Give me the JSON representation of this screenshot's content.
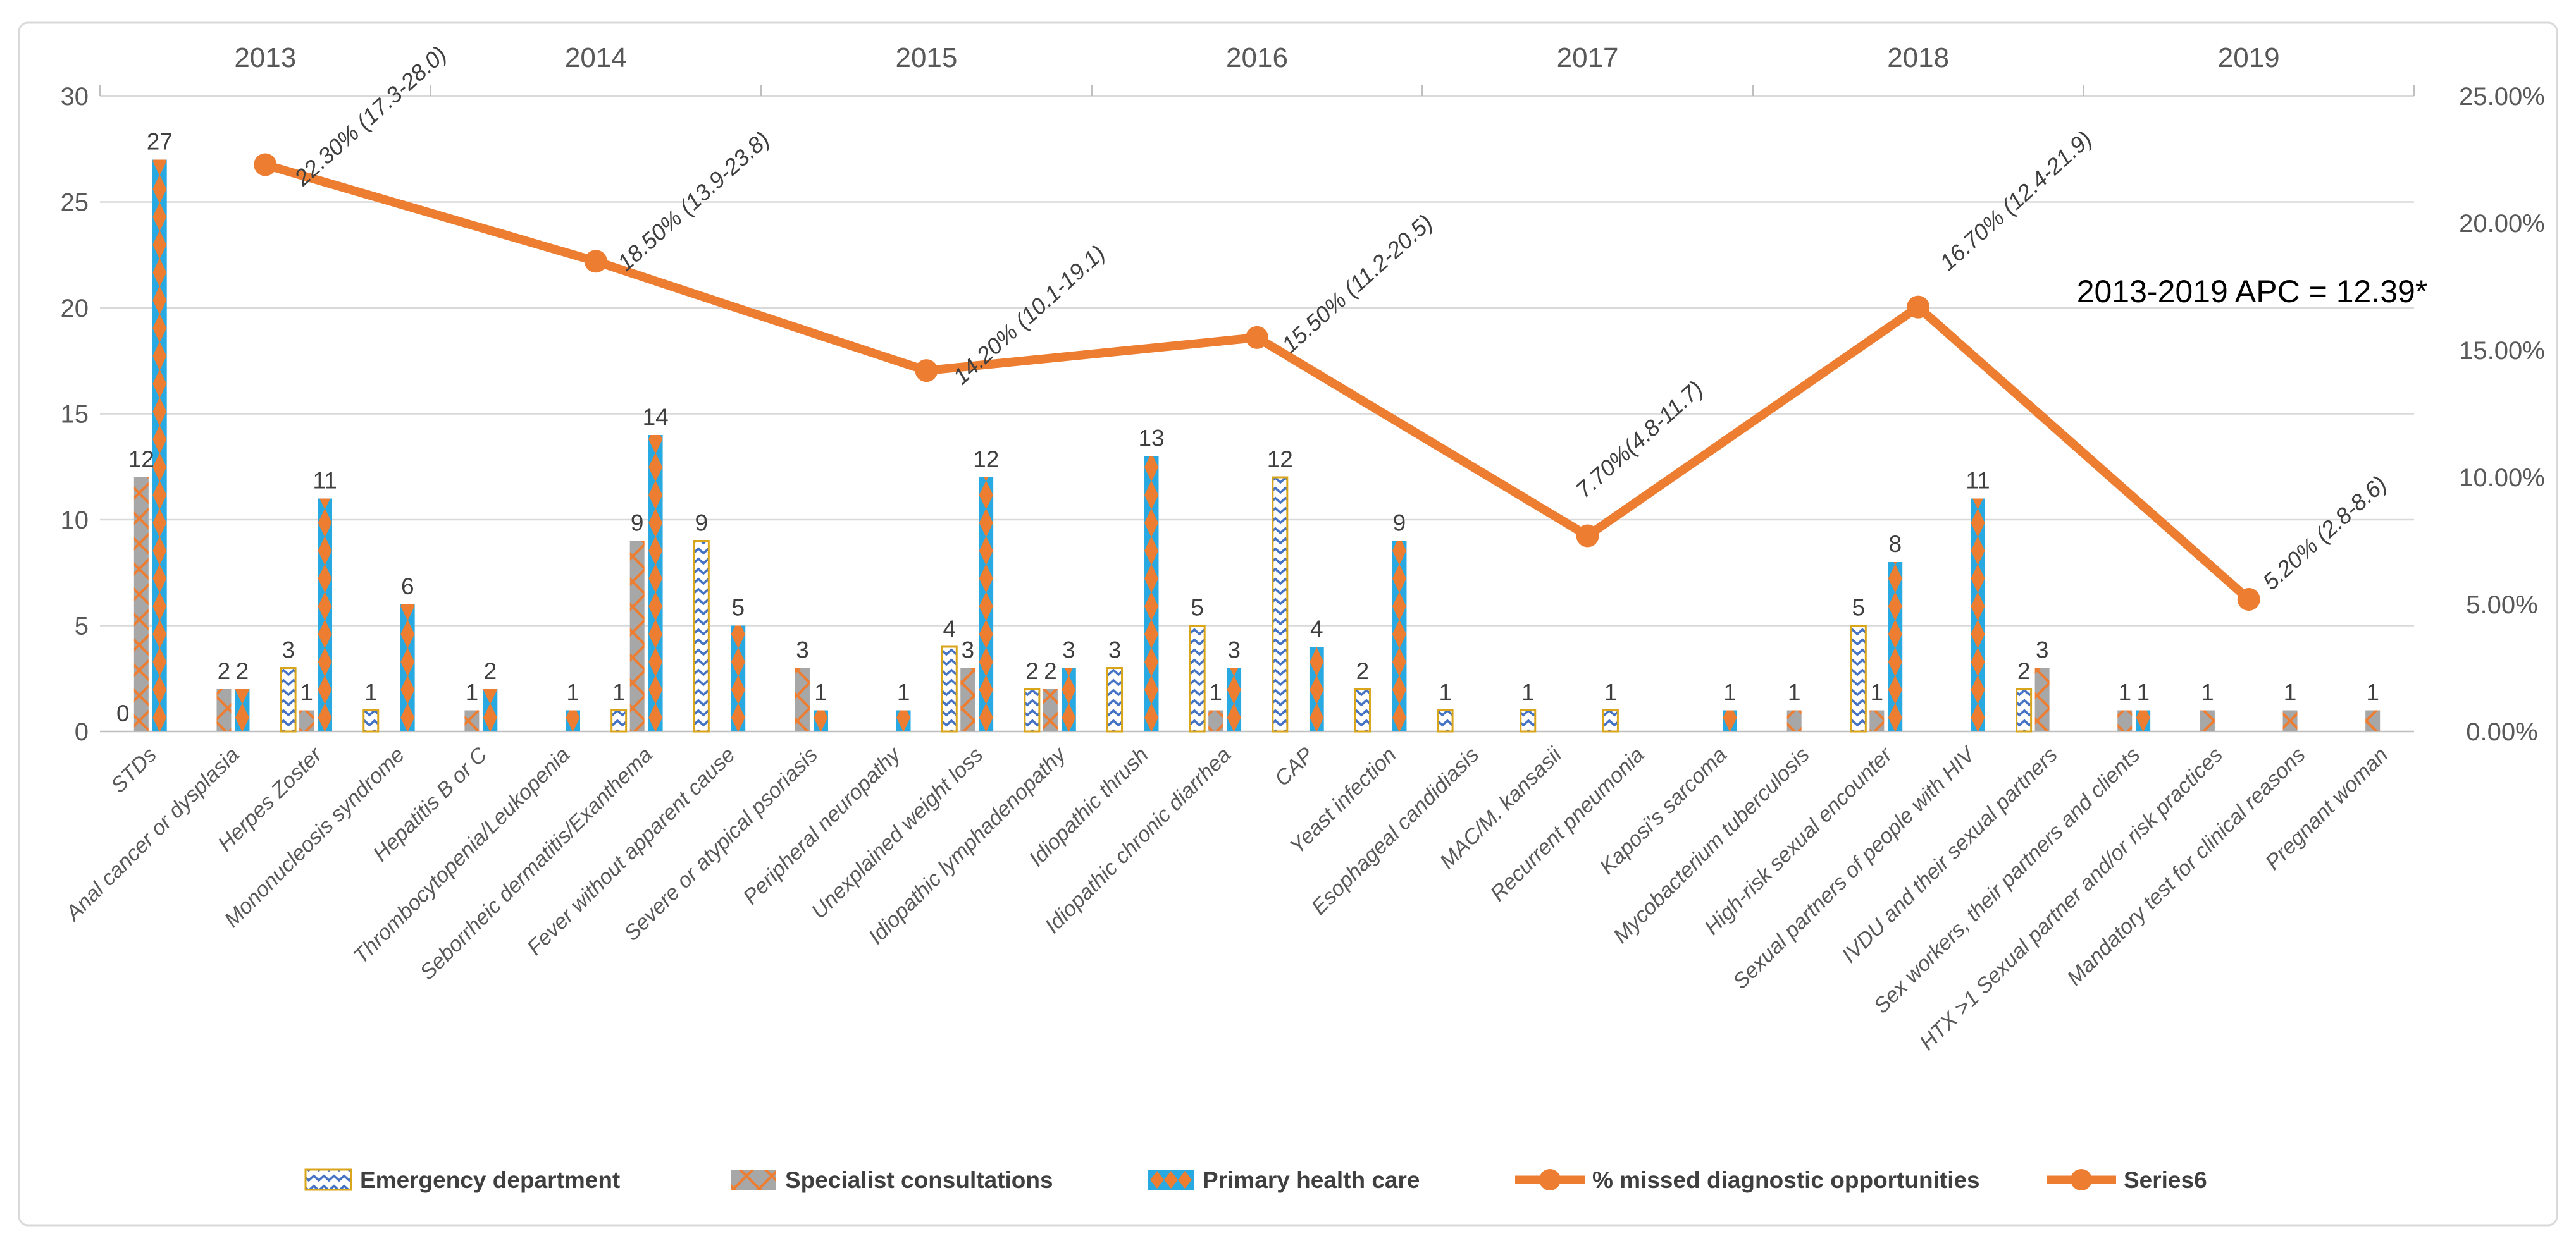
{
  "chart_data": {
    "type": "bar+line-combo",
    "categories": [
      "STDs",
      "Anal cancer or dysplasia",
      "Herpes Zoster",
      "Mononucleosis syndrome",
      "Hepatitis B or C",
      "Thrombocytopenia/Leukopenia",
      "Seborrheic dermatitis/Exanthema",
      "Fever without apparent cause",
      "Severe or atypical psoriasis",
      "Peripheral neuropathy",
      "Unexplained weight loss",
      "Idiopathic lymphadenopathy",
      "Idiopathic thrush",
      "Idiopathic chronic diarrhea",
      "CAP",
      "Yeast infection",
      "Esophageal candidiasis",
      "MAC/M. kansasii",
      "Recurrent pneumonia",
      "Kaposi's sarcoma",
      "Mycobacterium tuberculosis",
      "High-risk sexual encounter",
      "Sexual partners of people with HIV",
      "IVDU and their sexual partners",
      "Sex workers, their partners and clients",
      "HTX >1 Sexual partner and/or risk practices",
      "Mandatory test for clinical reasons",
      "Pregnant woman"
    ],
    "series": [
      {
        "name": "Emergency department",
        "type": "bar",
        "values": [
          0,
          null,
          3,
          1,
          null,
          null,
          1,
          9,
          null,
          null,
          4,
          2,
          3,
          5,
          12,
          2,
          1,
          1,
          1,
          null,
          null,
          5,
          null,
          2,
          null,
          null,
          null,
          null
        ]
      },
      {
        "name": "Specialist consultations",
        "type": "bar",
        "values": [
          12,
          2,
          1,
          null,
          1,
          null,
          9,
          null,
          3,
          null,
          3,
          2,
          null,
          1,
          null,
          null,
          null,
          null,
          null,
          null,
          1,
          1,
          null,
          3,
          1,
          1,
          1,
          1
        ]
      },
      {
        "name": "Primary health care",
        "type": "bar",
        "values": [
          27,
          2,
          11,
          6,
          2,
          1,
          14,
          5,
          1,
          1,
          12,
          3,
          13,
          3,
          4,
          9,
          null,
          null,
          null,
          1,
          null,
          8,
          11,
          null,
          1,
          null,
          null,
          null
        ]
      },
      {
        "name": "% missed diagnostic opportunities",
        "type": "line",
        "years": [
          "2013",
          "2014",
          "2015",
          "2016",
          "2017",
          "2018",
          "2019"
        ],
        "values_pct": [
          22.3,
          18.5,
          14.2,
          15.5,
          7.7,
          16.7,
          5.2
        ],
        "point_labels": [
          "22.30% (17.3-28.0)",
          "18.50% (13.9-23.8)",
          "14.20% (10.1-19.1)",
          "15.50% (11.2-20.5)",
          "7.70%(4.8-11.7)",
          "16.70% (12.4-21.9)",
          "5.20% (2.8-8.6)"
        ]
      },
      {
        "name": "Series6",
        "type": "line",
        "values_pct": []
      }
    ],
    "year_axis_labels": [
      "2013",
      "2014",
      "2015",
      "2016",
      "2017",
      "2018",
      "2019"
    ],
    "left_axis": {
      "ticks": [
        "0",
        "5",
        "10",
        "15",
        "20",
        "25",
        "30"
      ],
      "min": 0,
      "max": 30
    },
    "right_axis": {
      "ticks": [
        "0.00%",
        "5.00%",
        "10.00%",
        "15.00%",
        "20.00%",
        "25.00%"
      ],
      "min": 0,
      "max": 25
    },
    "annotation": "2013-2019 APC = 12.39*",
    "legend": [
      "Emergency department",
      "Specialist consultations",
      "Primary health care",
      "% missed diagnostic opportunities",
      "Series6"
    ],
    "grid": "horizontal-on",
    "legend_position": "bottom"
  },
  "colors": {
    "orange_accent": "#ED7D31",
    "phc_blue": "#29A9E1",
    "sc_gray": "#A7A7A7",
    "ed_gold_border": "#D9A61B",
    "ed_pattern_blue": "#4472C4",
    "gridline": "#D9D9D9",
    "axis_tick": "#BFBFBF",
    "axis_text": "#595959",
    "data_label_text": "#3F3F3F",
    "annotation_text": "#000000",
    "frame_border": "#D9D9D9",
    "background": "#FFFFFF"
  }
}
